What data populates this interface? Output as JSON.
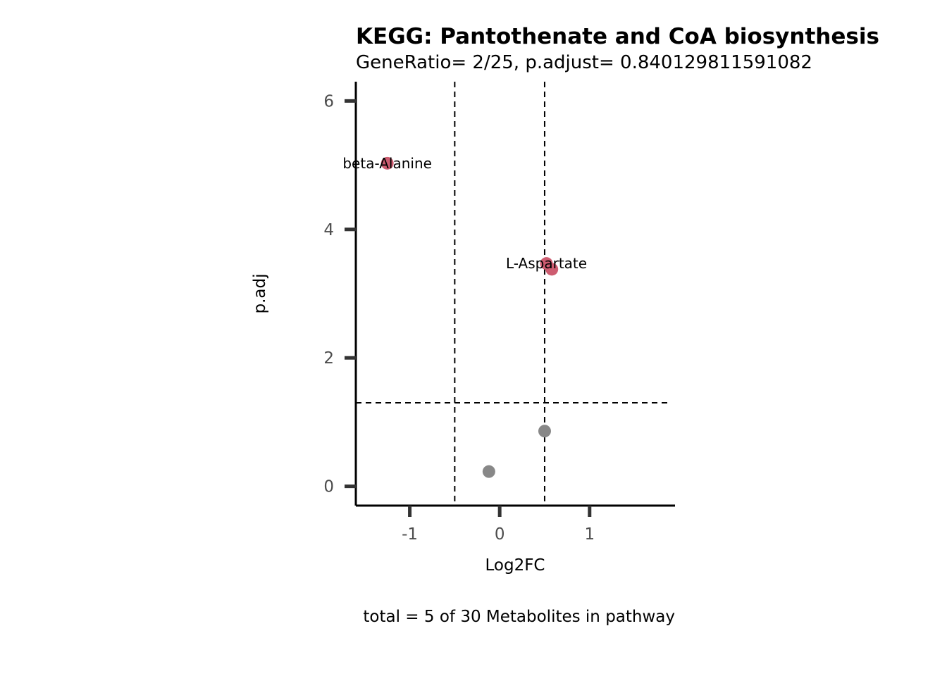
{
  "chart_data": {
    "type": "scatter",
    "title": "KEGG: Pantothenate and CoA biosynthesis",
    "subtitle": "GeneRatio= 2/25, p.adjust= 0.840129811591082",
    "xlabel": "Log2FC",
    "ylabel": "p.adj",
    "caption": "total = 5 of 30 Metabolites in pathway",
    "xlim": [
      -1.6,
      1.95
    ],
    "ylim": [
      -0.3,
      6.3
    ],
    "x_ticks": [
      -1,
      0,
      1
    ],
    "x_tick_labels": [
      "-1",
      "0",
      "1"
    ],
    "y_ticks": [
      0,
      2,
      4,
      6
    ],
    "y_tick_labels": [
      "0",
      "2",
      "4",
      "6"
    ],
    "thresholds": {
      "x": [
        -0.5,
        0.5
      ],
      "y": [
        1.3
      ]
    },
    "grid": false,
    "legend": "none",
    "colors": {
      "significant": "#cd5c70",
      "not_significant": "#888888",
      "axis": "#000000",
      "tick": "#333333"
    },
    "points": [
      {
        "x": -1.25,
        "y": 5.03,
        "label": "beta-Alanine",
        "significant": true
      },
      {
        "x": 0.52,
        "y": 3.47,
        "label": "L-Aspartate",
        "significant": true
      },
      {
        "x": 0.58,
        "y": 3.38,
        "label": "",
        "significant": true
      },
      {
        "x": 0.5,
        "y": 0.86,
        "label": "",
        "significant": false
      },
      {
        "x": -0.12,
        "y": 0.23,
        "label": "",
        "significant": false
      }
    ]
  }
}
